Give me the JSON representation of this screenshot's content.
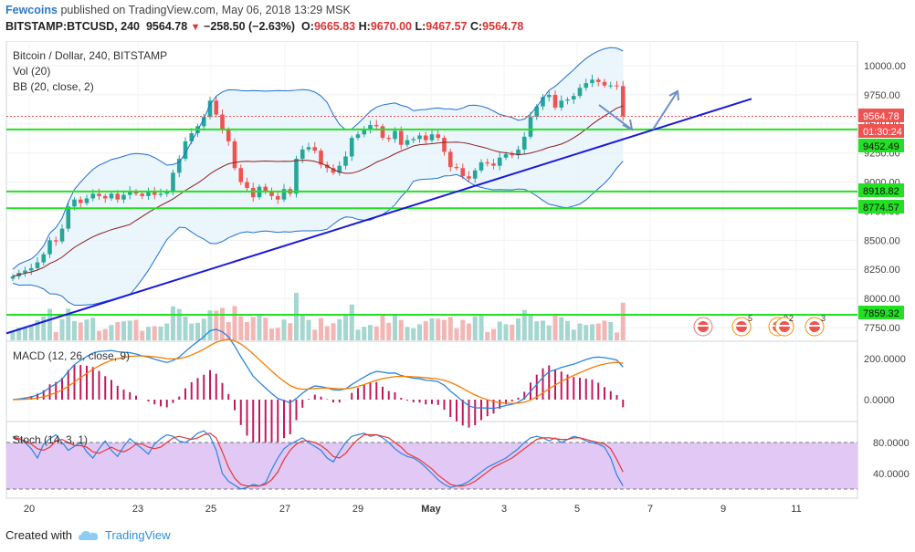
{
  "header": {
    "author": "Fewcoins",
    "published": "published on TradingView.com, May 06, 2018 13:29 MSK",
    "symbol": "BITSTAMP:BTCUSD, 240",
    "last": "9564.78",
    "change": "−258.50 (−2.63%)",
    "o_label": "O:",
    "o": "9665.83",
    "h_label": "H:",
    "h": "9670.00",
    "l_label": "L:",
    "l": "9467.57",
    "c_label": "C:",
    "c": "9564.78"
  },
  "legend": {
    "title": "Bitcoin / Dollar, 240, BITSTAMP",
    "vol": "Vol (20)",
    "bb": "BB (20, close, 2)",
    "macd": "MACD (12, 26, close, 9)",
    "stoch": "Stoch (14, 3, 1)"
  },
  "price_labels": {
    "last": "9564.78",
    "countdown": "01:30:24",
    "lvl1": "9452.49",
    "lvl2": "8918.82",
    "lvl3": "8774.57",
    "lvl4": "7859.32"
  },
  "event_badges": [
    "",
    "5",
    "9",
    "2",
    "3"
  ],
  "footer": {
    "created": "Created with",
    "brand": "TradingView"
  },
  "colors": {
    "up": "#26a69a",
    "down": "#ef5350",
    "level": "#22e022",
    "trend": "#1a1ad6",
    "bb": "#1f6fd0",
    "macd": "#2b84e0",
    "signal": "#f57c00",
    "stoch_k": "#2b84e0",
    "stoch_d": "#e53935",
    "stoch_band": "#e1c8f5"
  },
  "chart_data": {
    "type": "candlestick",
    "title": "Bitcoin / Dollar, 240, BITSTAMP",
    "price_axis": {
      "ticks": [
        10000,
        9750,
        9500,
        9250,
        9000,
        8750,
        8500,
        8250,
        8000,
        7750
      ],
      "tick_labels": [
        "10000.00",
        "9750.00",
        "9500.00",
        "9250.00",
        "9000.00",
        "8750.00",
        "8500.00",
        "8250.00",
        "8000.00",
        "7750.00"
      ],
      "range": [
        7600,
        10100
      ]
    },
    "time_axis": {
      "ticks": [
        "20",
        "23",
        "25",
        "27",
        "29",
        "May",
        "3",
        "5",
        "7",
        "9",
        "11"
      ]
    },
    "close": [
      8190,
      8220,
      8240,
      8260,
      8310,
      8380,
      8500,
      8490,
      8600,
      8790,
      8850,
      8820,
      8860,
      8900,
      8880,
      8860,
      8900,
      8850,
      8890,
      8920,
      8900,
      8880,
      8920,
      8890,
      8900,
      8920,
      9080,
      9200,
      9350,
      9420,
      9480,
      9560,
      9700,
      9580,
      9450,
      9350,
      9120,
      9000,
      8950,
      8870,
      8960,
      8920,
      8880,
      8850,
      8940,
      8900,
      9200,
      9280,
      9300,
      9270,
      9150,
      9120,
      9080,
      9140,
      9220,
      9380,
      9410,
      9450,
      9490,
      9480,
      9380,
      9370,
      9440,
      9320,
      9360,
      9370,
      9400,
      9360,
      9410,
      9380,
      9260,
      9130,
      9120,
      9050,
      9030,
      9100,
      9170,
      9160,
      9140,
      9210,
      9240,
      9230,
      9280,
      9390,
      9560,
      9650,
      9730,
      9750,
      9640,
      9700,
      9710,
      9740,
      9810,
      9850,
      9880,
      9860,
      9830,
      9830,
      9825,
      9564.78
    ],
    "open_first": 8170,
    "levels": [
      9452.49,
      8918.82,
      8774.57,
      7859.32
    ],
    "macd_axis": {
      "ticks": [
        200,
        0
      ],
      "tick_labels": [
        "200.0000",
        "0.0000"
      ]
    },
    "stoch_axis": {
      "ticks": [
        80,
        40
      ],
      "tick_labels": [
        "80.0000",
        "40.0000"
      ],
      "bands": [
        80,
        20
      ]
    },
    "stoch_k": [
      88,
      85,
      80,
      72,
      60,
      78,
      85,
      90,
      80,
      70,
      75,
      80,
      68,
      60,
      72,
      82,
      70,
      62,
      75,
      85,
      78,
      72,
      65,
      78,
      85,
      90,
      88,
      82,
      80,
      85,
      92,
      95,
      88,
      70,
      40,
      30,
      25,
      20,
      22,
      26,
      24,
      28,
      45,
      60,
      72,
      78,
      82,
      86,
      80,
      75,
      70,
      60,
      55,
      68,
      80,
      88,
      90,
      92,
      88,
      90,
      86,
      80,
      72,
      66,
      62,
      60,
      55,
      48,
      40,
      32,
      26,
      22,
      24,
      26,
      30,
      36,
      42,
      48,
      52,
      56,
      60,
      66,
      72,
      80,
      86,
      88,
      86,
      82,
      86,
      80,
      84,
      88,
      86,
      82,
      80,
      78,
      74,
      60,
      38,
      24
    ],
    "stoch_d": [
      86,
      85,
      82,
      78,
      72,
      70,
      74,
      82,
      84,
      80,
      76,
      76,
      74,
      68,
      66,
      70,
      74,
      70,
      68,
      72,
      78,
      78,
      74,
      72,
      74,
      80,
      86,
      88,
      86,
      84,
      86,
      90,
      92,
      86,
      68,
      48,
      34,
      26,
      24,
      24,
      24,
      26,
      32,
      42,
      58,
      70,
      78,
      82,
      82,
      80,
      76,
      70,
      62,
      60,
      66,
      76,
      84,
      90,
      90,
      90,
      88,
      86,
      80,
      74,
      66,
      62,
      58,
      52,
      46,
      38,
      32,
      26,
      24,
      24,
      26,
      30,
      36,
      42,
      48,
      52,
      56,
      60,
      66,
      72,
      78,
      84,
      86,
      86,
      85,
      84,
      84,
      86,
      86,
      84,
      82,
      80,
      78,
      72,
      58,
      42
    ]
  }
}
